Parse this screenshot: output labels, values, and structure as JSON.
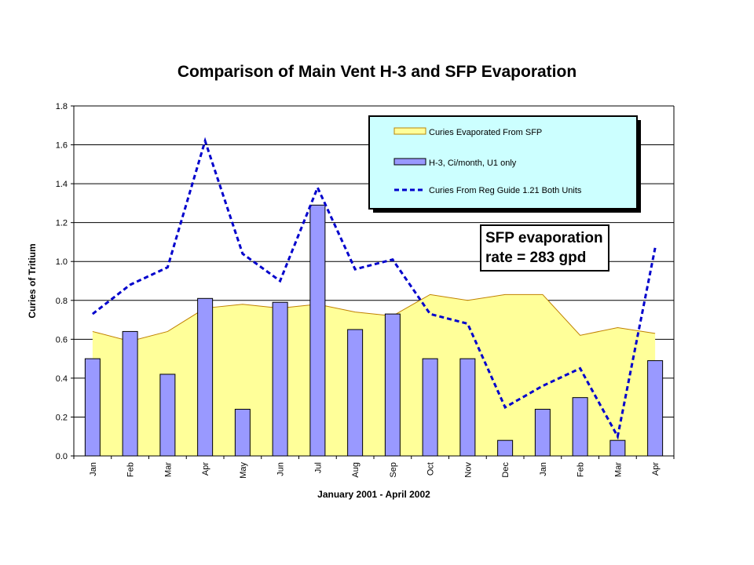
{
  "chart_data": {
    "type": "bar",
    "title": "Comparison of Main Vent H-3 and SFP Evaporation",
    "xlabel": "January 2001 - April 2002",
    "ylabel": "Curies of Tritium",
    "ylim": [
      0,
      1.8
    ],
    "yticks": [
      "0.0",
      "0.2",
      "0.4",
      "0.6",
      "0.8",
      "1.0",
      "1.2",
      "1.4",
      "1.6",
      "1.8"
    ],
    "categories": [
      "Jan",
      "Feb",
      "Mar",
      "Apr",
      "May",
      "Jun",
      "Jul",
      "Aug",
      "Sep",
      "Oct",
      "Nov",
      "Dec",
      "Jan",
      "Feb",
      "Mar",
      "Apr"
    ],
    "series": [
      {
        "name": "Curies Evaporated From SFP",
        "type": "area",
        "color": "#ffff99",
        "values": [
          0.64,
          0.59,
          0.64,
          0.76,
          0.78,
          0.76,
          0.78,
          0.74,
          0.72,
          0.83,
          0.8,
          0.83,
          0.83,
          0.62,
          0.66,
          0.63
        ]
      },
      {
        "name": "H-3, Ci/month, U1 only",
        "type": "bar",
        "color": "#9999ff",
        "values": [
          0.5,
          0.64,
          0.42,
          0.81,
          0.24,
          0.79,
          1.29,
          0.65,
          0.73,
          0.5,
          0.5,
          0.08,
          0.24,
          0.3,
          0.08,
          0.49
        ]
      },
      {
        "name": "Curies From Reg Guide 1.21 Both Units",
        "type": "line",
        "style": "dashed",
        "color": "#0000cc",
        "values": [
          0.73,
          0.88,
          0.97,
          1.62,
          1.04,
          0.9,
          1.38,
          0.96,
          1.01,
          0.73,
          0.68,
          0.25,
          0.36,
          0.45,
          0.1,
          1.07
        ]
      }
    ],
    "annotation": [
      "SFP evaporation",
      "rate = 283 gpd"
    ],
    "grid": true,
    "legend_position": "top-right"
  }
}
